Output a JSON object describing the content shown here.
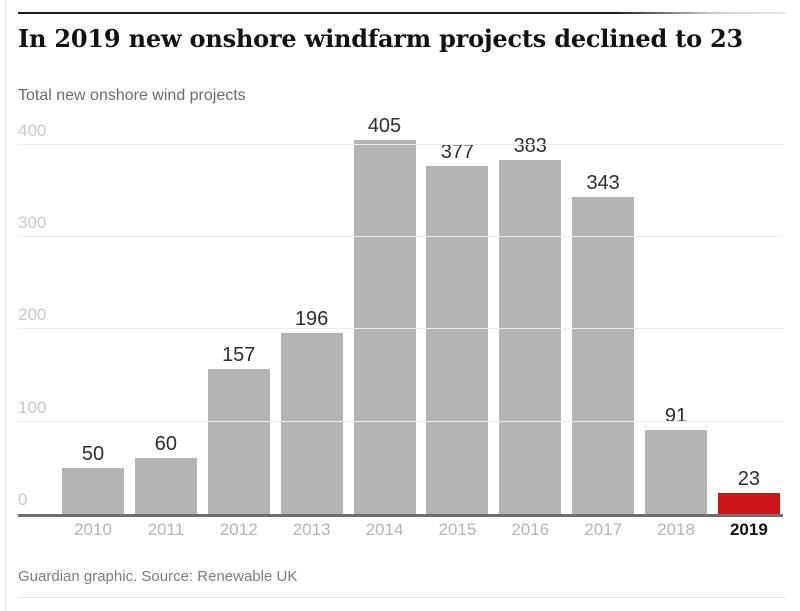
{
  "page": {
    "title": "In 2019 new onshore windfarm projects declined to 23",
    "subtitle": "Total new onshore wind projects",
    "footer": "Guardian graphic. Source: Renewable UK"
  },
  "chart_data": {
    "type": "bar",
    "title": "In 2019 new onshore windfarm projects declined to 23",
    "subtitle": "Total new onshore wind projects",
    "categories": [
      "2010",
      "2011",
      "2012",
      "2013",
      "2014",
      "2015",
      "2016",
      "2017",
      "2018",
      "2019"
    ],
    "values": [
      50,
      60,
      157,
      196,
      405,
      377,
      383,
      343,
      91,
      23
    ],
    "value_labels": true,
    "highlight_category": "2019",
    "bar_color": "#b4b4b4",
    "highlight_color": "#cd1518",
    "ylim": [
      0,
      400
    ],
    "yticks": [
      0,
      100,
      200,
      300,
      400
    ],
    "grid": true,
    "legend": false,
    "xlabel": "",
    "ylabel": "",
    "source": "Guardian graphic. Source: Renewable UK"
  }
}
